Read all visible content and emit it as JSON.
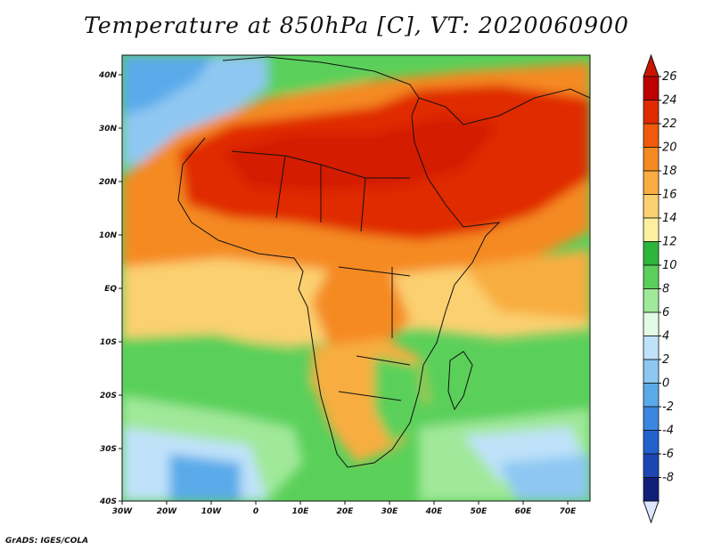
{
  "title": "Temperature at 850hPa [C], VT: 2020060900",
  "footer": "GrADS: IGES/COLA",
  "axes": {
    "lon_ticks": [
      "30W",
      "20W",
      "10W",
      "0",
      "10E",
      "20E",
      "30E",
      "40E",
      "50E",
      "60E",
      "70E"
    ],
    "lat_ticks": [
      "40N",
      "30N",
      "20N",
      "10N",
      "EQ",
      "10S",
      "20S",
      "30S",
      "40S"
    ]
  },
  "colorbar": {
    "labels": [
      "26",
      "24",
      "22",
      "20",
      "18",
      "16",
      "14",
      "12",
      "10",
      "8",
      "6",
      "4",
      "2",
      "0",
      "-2",
      "-4",
      "-6",
      "-8"
    ],
    "colors": [
      "#bd0000",
      "#e02a00",
      "#f05a0a",
      "#f58a20",
      "#f8ad40",
      "#fbd070",
      "#fdeea0",
      "#2db53c",
      "#5ad05a",
      "#a0e89a",
      "#e3fbe6",
      "#bfe2f9",
      "#8ec8f2",
      "#5aaaea",
      "#3a86e0",
      "#2162cf",
      "#1d46b2",
      "#0f1f7a"
    ],
    "top_arrow_color": "#c81400",
    "bottom_arrow_color": "#dde6ff"
  },
  "map_colors": {
    "ocean_green": "#5ad05a",
    "ocean_light": "#a0e89a",
    "ocean_blue": "#8ec8f2",
    "ocean_deep": "#3a86e0",
    "warm": "#f58a20",
    "hot": "#e02a00",
    "mild": "#f8ad40",
    "cool": "#fbd070",
    "border": "#111111"
  }
}
